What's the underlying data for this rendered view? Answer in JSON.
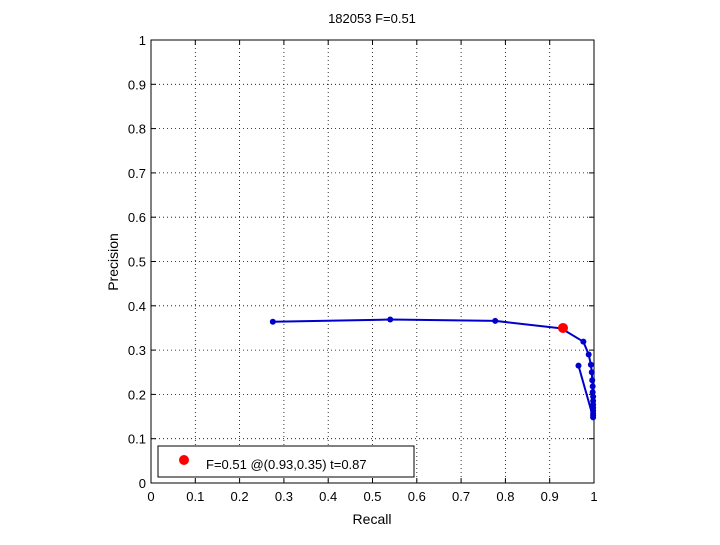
{
  "chart_data": {
    "type": "line",
    "title": "182053 F=0.51",
    "xlabel": "Recall",
    "ylabel": "Precision",
    "xlim": [
      0,
      1
    ],
    "ylim": [
      0,
      1
    ],
    "xticks": [
      "0",
      "0.1",
      "0.2",
      "0.3",
      "0.4",
      "0.5",
      "0.6",
      "0.7",
      "0.8",
      "0.9",
      "1"
    ],
    "yticks": [
      "0",
      "0.1",
      "0.2",
      "0.3",
      "0.4",
      "0.5",
      "0.6",
      "0.7",
      "0.8",
      "0.9",
      "1"
    ],
    "grid": true,
    "grid_style": "dotted",
    "legend_position": "bottom-left",
    "series": [
      {
        "color": "#0000cc",
        "marker": "dot",
        "points": [
          {
            "x": 0.275,
            "y": 0.364
          },
          {
            "x": 0.54,
            "y": 0.369
          },
          {
            "x": 0.777,
            "y": 0.366
          },
          {
            "x": 0.926,
            "y": 0.349
          },
          {
            "x": 0.976,
            "y": 0.319
          },
          {
            "x": 0.988,
            "y": 0.29
          },
          {
            "x": 0.993,
            "y": 0.267
          },
          {
            "x": 0.995,
            "y": 0.25
          },
          {
            "x": 0.996,
            "y": 0.232
          },
          {
            "x": 0.997,
            "y": 0.218
          },
          {
            "x": 0.997,
            "y": 0.205
          },
          {
            "x": 0.998,
            "y": 0.195
          },
          {
            "x": 0.998,
            "y": 0.185
          },
          {
            "x": 0.998,
            "y": 0.177
          },
          {
            "x": 0.998,
            "y": 0.17
          },
          {
            "x": 0.998,
            "y": 0.163
          },
          {
            "x": 0.998,
            "y": 0.157
          },
          {
            "x": 0.998,
            "y": 0.152
          },
          {
            "x": 0.998,
            "y": 0.148
          },
          {
            "x": 0.965,
            "y": 0.265
          }
        ]
      }
    ],
    "best_point": {
      "x": 0.93,
      "y": 0.35,
      "color": "#ff0000",
      "legend_label": "F=0.51 @(0.93,0.35) t=0.87"
    }
  }
}
